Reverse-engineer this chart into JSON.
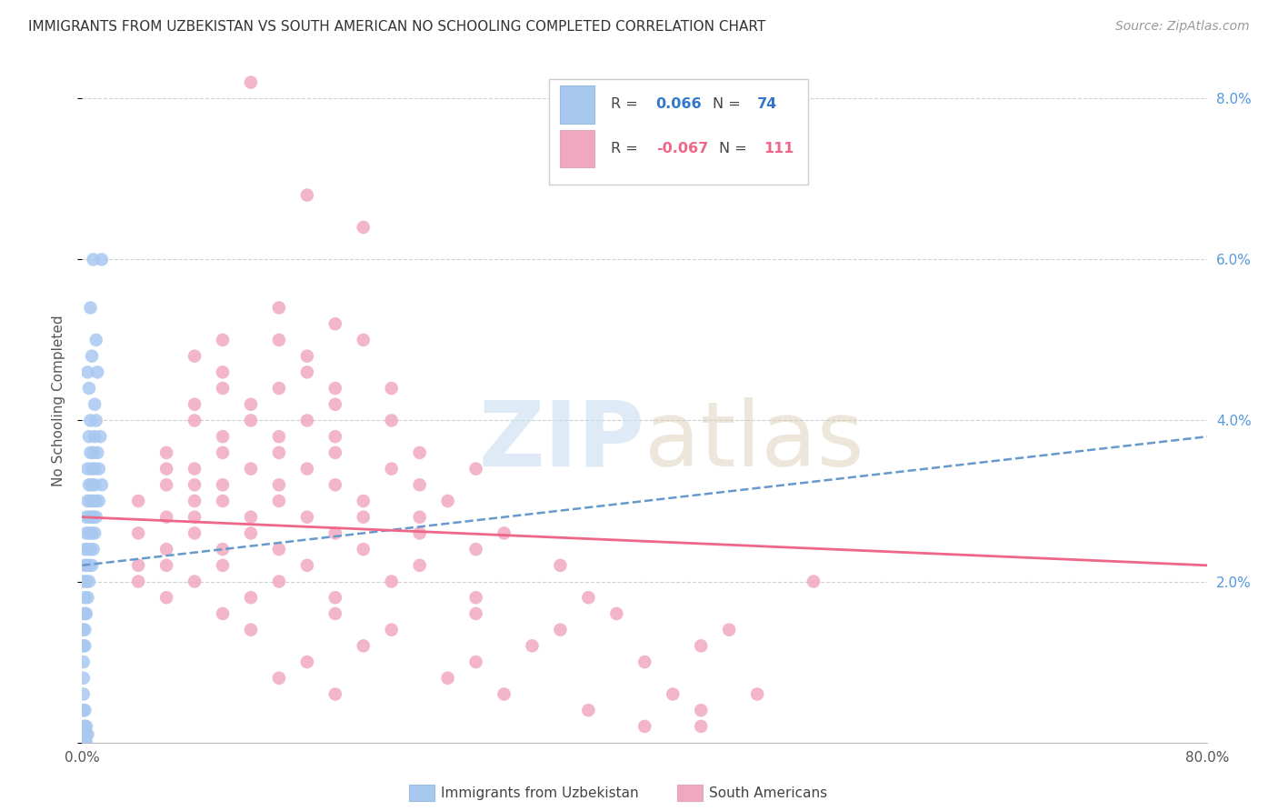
{
  "title": "IMMIGRANTS FROM UZBEKISTAN VS SOUTH AMERICAN NO SCHOOLING COMPLETED CORRELATION CHART",
  "source": "Source: ZipAtlas.com",
  "ylabel": "No Schooling Completed",
  "xlim": [
    0.0,
    0.8
  ],
  "ylim": [
    0.0,
    0.085
  ],
  "xtick_vals": [
    0.0,
    0.2,
    0.4,
    0.6,
    0.8
  ],
  "xtick_labels": [
    "0.0%",
    "",
    "",
    "",
    "80.0%"
  ],
  "ytick_vals": [
    0.0,
    0.02,
    0.04,
    0.06,
    0.08
  ],
  "ytick_labels": [
    "",
    "2.0%",
    "4.0%",
    "6.0%",
    "8.0%"
  ],
  "blue_color": "#a8c8f0",
  "pink_color": "#f0a8c0",
  "blue_line_color": "#6699cc",
  "pink_line_color": "#ee6688",
  "blue_scatter": [
    [
      0.008,
      0.06
    ],
    [
      0.014,
      0.06
    ],
    [
      0.006,
      0.054
    ],
    [
      0.01,
      0.05
    ],
    [
      0.007,
      0.048
    ],
    [
      0.004,
      0.046
    ],
    [
      0.011,
      0.046
    ],
    [
      0.005,
      0.044
    ],
    [
      0.009,
      0.042
    ],
    [
      0.006,
      0.04
    ],
    [
      0.01,
      0.04
    ],
    [
      0.005,
      0.038
    ],
    [
      0.009,
      0.038
    ],
    [
      0.013,
      0.038
    ],
    [
      0.006,
      0.036
    ],
    [
      0.008,
      0.036
    ],
    [
      0.011,
      0.036
    ],
    [
      0.004,
      0.034
    ],
    [
      0.007,
      0.034
    ],
    [
      0.009,
      0.034
    ],
    [
      0.012,
      0.034
    ],
    [
      0.005,
      0.032
    ],
    [
      0.007,
      0.032
    ],
    [
      0.009,
      0.032
    ],
    [
      0.014,
      0.032
    ],
    [
      0.004,
      0.03
    ],
    [
      0.006,
      0.03
    ],
    [
      0.008,
      0.03
    ],
    [
      0.01,
      0.03
    ],
    [
      0.012,
      0.03
    ],
    [
      0.003,
      0.028
    ],
    [
      0.005,
      0.028
    ],
    [
      0.007,
      0.028
    ],
    [
      0.008,
      0.028
    ],
    [
      0.01,
      0.028
    ],
    [
      0.003,
      0.026
    ],
    [
      0.005,
      0.026
    ],
    [
      0.007,
      0.026
    ],
    [
      0.009,
      0.026
    ],
    [
      0.002,
      0.024
    ],
    [
      0.004,
      0.024
    ],
    [
      0.006,
      0.024
    ],
    [
      0.008,
      0.024
    ],
    [
      0.002,
      0.022
    ],
    [
      0.003,
      0.022
    ],
    [
      0.005,
      0.022
    ],
    [
      0.007,
      0.022
    ],
    [
      0.001,
      0.02
    ],
    [
      0.003,
      0.02
    ],
    [
      0.005,
      0.02
    ],
    [
      0.002,
      0.018
    ],
    [
      0.004,
      0.018
    ],
    [
      0.001,
      0.016
    ],
    [
      0.002,
      0.016
    ],
    [
      0.003,
      0.016
    ],
    [
      0.001,
      0.014
    ],
    [
      0.002,
      0.014
    ],
    [
      0.001,
      0.012
    ],
    [
      0.002,
      0.012
    ],
    [
      0.001,
      0.01
    ],
    [
      0.001,
      0.008
    ],
    [
      0.001,
      0.006
    ],
    [
      0.001,
      0.004
    ],
    [
      0.002,
      0.004
    ],
    [
      0.001,
      0.002
    ],
    [
      0.002,
      0.002
    ],
    [
      0.003,
      0.002
    ],
    [
      0.001,
      0.001
    ],
    [
      0.002,
      0.001
    ],
    [
      0.003,
      0.001
    ],
    [
      0.004,
      0.001
    ],
    [
      0.001,
      0.0
    ],
    [
      0.002,
      0.0
    ],
    [
      0.003,
      0.0
    ]
  ],
  "pink_scatter": [
    [
      0.12,
      0.082
    ],
    [
      0.16,
      0.068
    ],
    [
      0.2,
      0.064
    ],
    [
      0.14,
      0.054
    ],
    [
      0.18,
      0.052
    ],
    [
      0.1,
      0.05
    ],
    [
      0.14,
      0.05
    ],
    [
      0.2,
      0.05
    ],
    [
      0.08,
      0.048
    ],
    [
      0.16,
      0.048
    ],
    [
      0.1,
      0.046
    ],
    [
      0.16,
      0.046
    ],
    [
      0.1,
      0.044
    ],
    [
      0.14,
      0.044
    ],
    [
      0.18,
      0.044
    ],
    [
      0.22,
      0.044
    ],
    [
      0.08,
      0.042
    ],
    [
      0.12,
      0.042
    ],
    [
      0.18,
      0.042
    ],
    [
      0.08,
      0.04
    ],
    [
      0.12,
      0.04
    ],
    [
      0.16,
      0.04
    ],
    [
      0.22,
      0.04
    ],
    [
      0.1,
      0.038
    ],
    [
      0.14,
      0.038
    ],
    [
      0.18,
      0.038
    ],
    [
      0.06,
      0.036
    ],
    [
      0.1,
      0.036
    ],
    [
      0.14,
      0.036
    ],
    [
      0.18,
      0.036
    ],
    [
      0.24,
      0.036
    ],
    [
      0.06,
      0.034
    ],
    [
      0.08,
      0.034
    ],
    [
      0.12,
      0.034
    ],
    [
      0.16,
      0.034
    ],
    [
      0.22,
      0.034
    ],
    [
      0.28,
      0.034
    ],
    [
      0.06,
      0.032
    ],
    [
      0.08,
      0.032
    ],
    [
      0.1,
      0.032
    ],
    [
      0.14,
      0.032
    ],
    [
      0.18,
      0.032
    ],
    [
      0.24,
      0.032
    ],
    [
      0.04,
      0.03
    ],
    [
      0.08,
      0.03
    ],
    [
      0.1,
      0.03
    ],
    [
      0.14,
      0.03
    ],
    [
      0.2,
      0.03
    ],
    [
      0.26,
      0.03
    ],
    [
      0.06,
      0.028
    ],
    [
      0.08,
      0.028
    ],
    [
      0.12,
      0.028
    ],
    [
      0.16,
      0.028
    ],
    [
      0.2,
      0.028
    ],
    [
      0.24,
      0.028
    ],
    [
      0.04,
      0.026
    ],
    [
      0.08,
      0.026
    ],
    [
      0.12,
      0.026
    ],
    [
      0.18,
      0.026
    ],
    [
      0.24,
      0.026
    ],
    [
      0.3,
      0.026
    ],
    [
      0.06,
      0.024
    ],
    [
      0.1,
      0.024
    ],
    [
      0.14,
      0.024
    ],
    [
      0.2,
      0.024
    ],
    [
      0.28,
      0.024
    ],
    [
      0.04,
      0.022
    ],
    [
      0.06,
      0.022
    ],
    [
      0.1,
      0.022
    ],
    [
      0.16,
      0.022
    ],
    [
      0.24,
      0.022
    ],
    [
      0.34,
      0.022
    ],
    [
      0.04,
      0.02
    ],
    [
      0.08,
      0.02
    ],
    [
      0.14,
      0.02
    ],
    [
      0.22,
      0.02
    ],
    [
      0.52,
      0.02
    ],
    [
      0.06,
      0.018
    ],
    [
      0.12,
      0.018
    ],
    [
      0.18,
      0.018
    ],
    [
      0.28,
      0.018
    ],
    [
      0.36,
      0.018
    ],
    [
      0.1,
      0.016
    ],
    [
      0.18,
      0.016
    ],
    [
      0.28,
      0.016
    ],
    [
      0.38,
      0.016
    ],
    [
      0.12,
      0.014
    ],
    [
      0.22,
      0.014
    ],
    [
      0.34,
      0.014
    ],
    [
      0.46,
      0.014
    ],
    [
      0.2,
      0.012
    ],
    [
      0.32,
      0.012
    ],
    [
      0.44,
      0.012
    ],
    [
      0.16,
      0.01
    ],
    [
      0.28,
      0.01
    ],
    [
      0.4,
      0.01
    ],
    [
      0.14,
      0.008
    ],
    [
      0.26,
      0.008
    ],
    [
      0.18,
      0.006
    ],
    [
      0.3,
      0.006
    ],
    [
      0.42,
      0.006
    ],
    [
      0.48,
      0.006
    ],
    [
      0.36,
      0.004
    ],
    [
      0.44,
      0.004
    ],
    [
      0.4,
      0.002
    ],
    [
      0.44,
      0.002
    ]
  ],
  "blue_trend_x": [
    0.0,
    0.8
  ],
  "blue_trend_y": [
    0.022,
    0.038
  ],
  "pink_trend_x": [
    0.0,
    0.8
  ],
  "pink_trend_y": [
    0.028,
    0.022
  ]
}
